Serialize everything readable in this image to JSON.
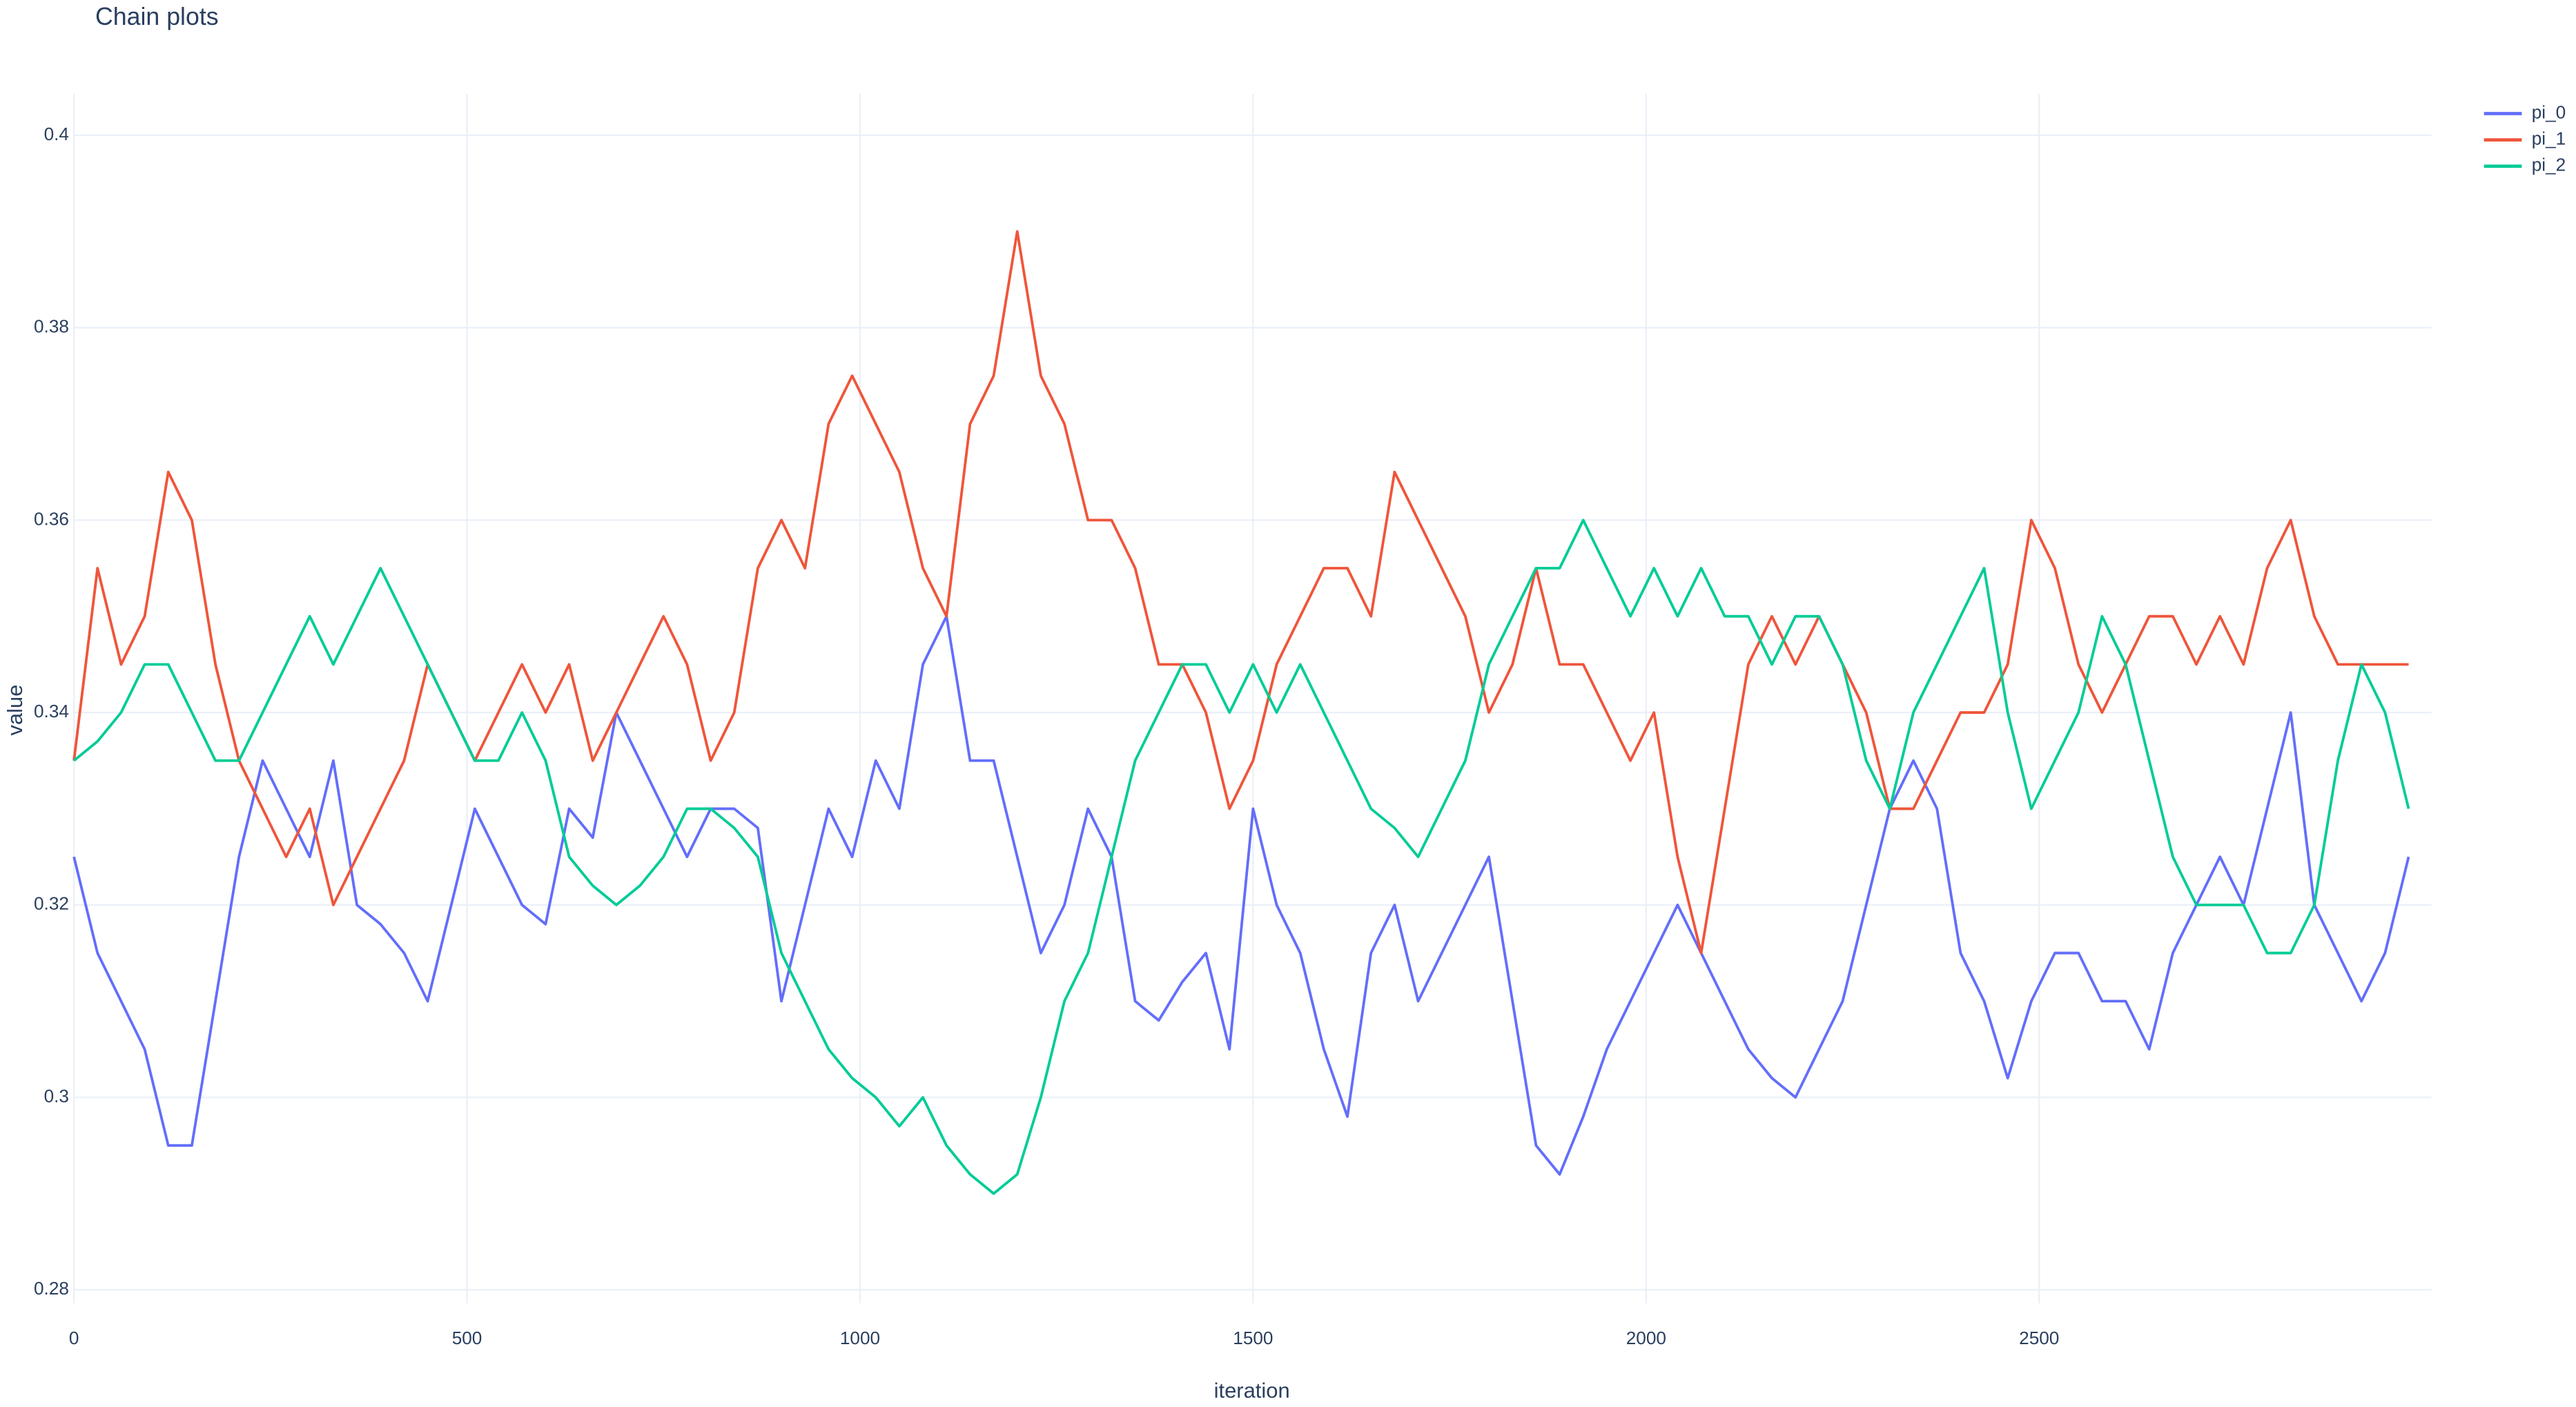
{
  "chart_data": {
    "type": "line",
    "title": "Chain plots",
    "x_label": "iteration",
    "y_label": "value",
    "x": [
      0,
      30,
      60,
      90,
      120,
      150,
      180,
      210,
      240,
      270,
      300,
      330,
      360,
      390,
      420,
      450,
      480,
      510,
      540,
      570,
      600,
      630,
      660,
      690,
      720,
      750,
      780,
      810,
      840,
      870,
      900,
      930,
      960,
      990,
      1020,
      1050,
      1080,
      1110,
      1140,
      1170,
      1200,
      1230,
      1260,
      1290,
      1320,
      1350,
      1380,
      1410,
      1440,
      1470,
      1500,
      1530,
      1560,
      1590,
      1620,
      1650,
      1680,
      1710,
      1740,
      1770,
      1800,
      1830,
      1860,
      1890,
      1920,
      1950,
      1980,
      2010,
      2040,
      2070,
      2100,
      2130,
      2160,
      2190,
      2220,
      2250,
      2280,
      2310,
      2340,
      2370,
      2400,
      2430,
      2460,
      2490,
      2520,
      2550,
      2580,
      2610,
      2640,
      2670,
      2700,
      2730,
      2760,
      2790,
      2820,
      2850,
      2880,
      2910,
      2940,
      2970
    ],
    "series": [
      {
        "name": "pi_0",
        "color": "#636efa",
        "values": [
          0.325,
          0.315,
          0.31,
          0.305,
          0.295,
          0.295,
          0.31,
          0.325,
          0.335,
          0.33,
          0.325,
          0.335,
          0.32,
          0.318,
          0.315,
          0.31,
          0.32,
          0.33,
          0.325,
          0.32,
          0.318,
          0.33,
          0.327,
          0.34,
          0.335,
          0.33,
          0.325,
          0.33,
          0.33,
          0.328,
          0.31,
          0.32,
          0.33,
          0.325,
          0.335,
          0.33,
          0.345,
          0.35,
          0.335,
          0.335,
          0.325,
          0.315,
          0.32,
          0.33,
          0.325,
          0.31,
          0.308,
          0.312,
          0.315,
          0.305,
          0.33,
          0.32,
          0.315,
          0.305,
          0.298,
          0.315,
          0.32,
          0.31,
          0.315,
          0.32,
          0.325,
          0.31,
          0.295,
          0.292,
          0.298,
          0.305,
          0.31,
          0.315,
          0.32,
          0.315,
          0.31,
          0.305,
          0.302,
          0.3,
          0.305,
          0.31,
          0.32,
          0.33,
          0.335,
          0.33,
          0.315,
          0.31,
          0.302,
          0.31,
          0.315,
          0.315,
          0.31,
          0.31,
          0.305,
          0.315,
          0.32,
          0.325,
          0.32,
          0.33,
          0.34,
          0.32,
          0.315,
          0.31,
          0.315,
          0.325
        ]
      },
      {
        "name": "pi_1",
        "color": "#ef553b",
        "values": [
          0.335,
          0.355,
          0.345,
          0.35,
          0.365,
          0.36,
          0.345,
          0.335,
          0.33,
          0.325,
          0.33,
          0.32,
          0.325,
          0.33,
          0.335,
          0.345,
          0.34,
          0.335,
          0.34,
          0.345,
          0.34,
          0.345,
          0.335,
          0.34,
          0.345,
          0.35,
          0.345,
          0.335,
          0.34,
          0.355,
          0.36,
          0.355,
          0.37,
          0.375,
          0.37,
          0.365,
          0.355,
          0.35,
          0.37,
          0.375,
          0.39,
          0.375,
          0.37,
          0.36,
          0.36,
          0.355,
          0.345,
          0.345,
          0.34,
          0.33,
          0.335,
          0.345,
          0.35,
          0.355,
          0.355,
          0.35,
          0.365,
          0.36,
          0.355,
          0.35,
          0.34,
          0.345,
          0.355,
          0.345,
          0.345,
          0.34,
          0.335,
          0.34,
          0.325,
          0.315,
          0.33,
          0.345,
          0.35,
          0.345,
          0.35,
          0.345,
          0.34,
          0.33,
          0.33,
          0.335,
          0.34,
          0.34,
          0.345,
          0.36,
          0.355,
          0.345,
          0.34,
          0.345,
          0.35,
          0.35,
          0.345,
          0.35,
          0.345,
          0.355,
          0.36,
          0.35,
          0.345,
          0.345,
          0.345,
          0.345
        ]
      },
      {
        "name": "pi_2",
        "color": "#00cc96",
        "values": [
          0.335,
          0.337,
          0.34,
          0.345,
          0.345,
          0.34,
          0.335,
          0.335,
          0.34,
          0.345,
          0.35,
          0.345,
          0.35,
          0.355,
          0.35,
          0.345,
          0.34,
          0.335,
          0.335,
          0.34,
          0.335,
          0.325,
          0.322,
          0.32,
          0.322,
          0.325,
          0.33,
          0.33,
          0.328,
          0.325,
          0.315,
          0.31,
          0.305,
          0.302,
          0.3,
          0.297,
          0.3,
          0.295,
          0.292,
          0.29,
          0.292,
          0.3,
          0.31,
          0.315,
          0.325,
          0.335,
          0.34,
          0.345,
          0.345,
          0.34,
          0.345,
          0.34,
          0.345,
          0.34,
          0.335,
          0.33,
          0.328,
          0.325,
          0.33,
          0.335,
          0.345,
          0.35,
          0.355,
          0.355,
          0.36,
          0.355,
          0.35,
          0.355,
          0.35,
          0.355,
          0.35,
          0.35,
          0.345,
          0.35,
          0.35,
          0.345,
          0.335,
          0.33,
          0.34,
          0.345,
          0.35,
          0.355,
          0.34,
          0.33,
          0.335,
          0.34,
          0.35,
          0.345,
          0.335,
          0.325,
          0.32,
          0.32,
          0.32,
          0.315,
          0.315,
          0.32,
          0.335,
          0.345,
          0.34,
          0.33
        ]
      }
    ],
    "xlim": [
      0,
      2999
    ],
    "ylim": [
      0.2786,
      0.4043
    ],
    "xticks": [
      0,
      500,
      1000,
      1500,
      2000,
      2500
    ],
    "yticks": [
      0.28,
      0.3,
      0.32,
      0.34,
      0.36,
      0.38,
      0.4
    ],
    "grid": true,
    "legend": "top-right"
  }
}
